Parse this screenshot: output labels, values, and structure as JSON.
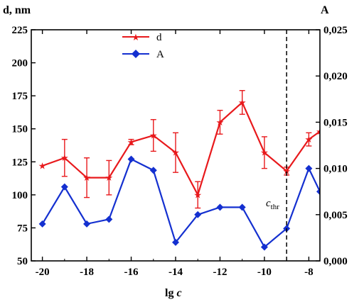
{
  "chart_data": {
    "type": "line",
    "xlabel_main": "lg ",
    "xlabel_italic": "c",
    "ylabel_left": "d, nm",
    "ylabel_right": "A",
    "xlim": [
      -20.5,
      -7.5
    ],
    "ylim_left": [
      50,
      225
    ],
    "ylim_right": [
      0,
      0.025
    ],
    "x_ticks": [
      -20,
      -18,
      -16,
      -14,
      -12,
      -10,
      -8
    ],
    "x_tick_labels": [
      "-20",
      "-18",
      "-16",
      "-14",
      "-12",
      "-10",
      "-8"
    ],
    "y_left_ticks": [
      50,
      75,
      100,
      125,
      150,
      175,
      200,
      225
    ],
    "y_left_tick_labels": [
      "50",
      "75",
      "100",
      "125",
      "150",
      "175",
      "200",
      "225"
    ],
    "y_right_ticks": [
      0,
      0.005,
      0.01,
      0.015,
      0.02,
      0.025
    ],
    "y_right_tick_labels": [
      "0,000",
      "0,005",
      "0,010",
      "0,015",
      "0,020",
      "0,025"
    ],
    "threshold": {
      "x": -9,
      "label_main": "c",
      "label_sub": "thr"
    },
    "series": [
      {
        "name": "d",
        "axis": "left",
        "color": "#e8191c",
        "marker": "star",
        "x": [
          -20,
          -19,
          -18,
          -17,
          -16,
          -15,
          -14,
          -13,
          -12,
          -11,
          -10,
          -9,
          -8,
          -7.5
        ],
        "y": [
          122,
          128,
          113,
          113,
          140,
          145,
          132,
          100,
          155,
          170,
          132,
          118,
          142,
          148
        ],
        "err": [
          0,
          14,
          15,
          13,
          2,
          12,
          15,
          10,
          9,
          9,
          12,
          3,
          5,
          0
        ]
      },
      {
        "name": "A",
        "axis": "right",
        "color": "#1430d0",
        "marker": "diamond",
        "x": [
          -20,
          -19,
          -18,
          -17,
          -16,
          -15,
          -14,
          -13,
          -12,
          -11,
          -10,
          -9,
          -8,
          -7.5
        ],
        "y": [
          0.004,
          0.008,
          0.004,
          0.0045,
          0.011,
          0.0098,
          0.002,
          0.005,
          0.0058,
          0.0058,
          0.0015,
          0.0035,
          0.01,
          0.0075
        ]
      }
    ],
    "legend": {
      "position": "top-left-center",
      "entries": [
        "d",
        "A"
      ]
    }
  }
}
